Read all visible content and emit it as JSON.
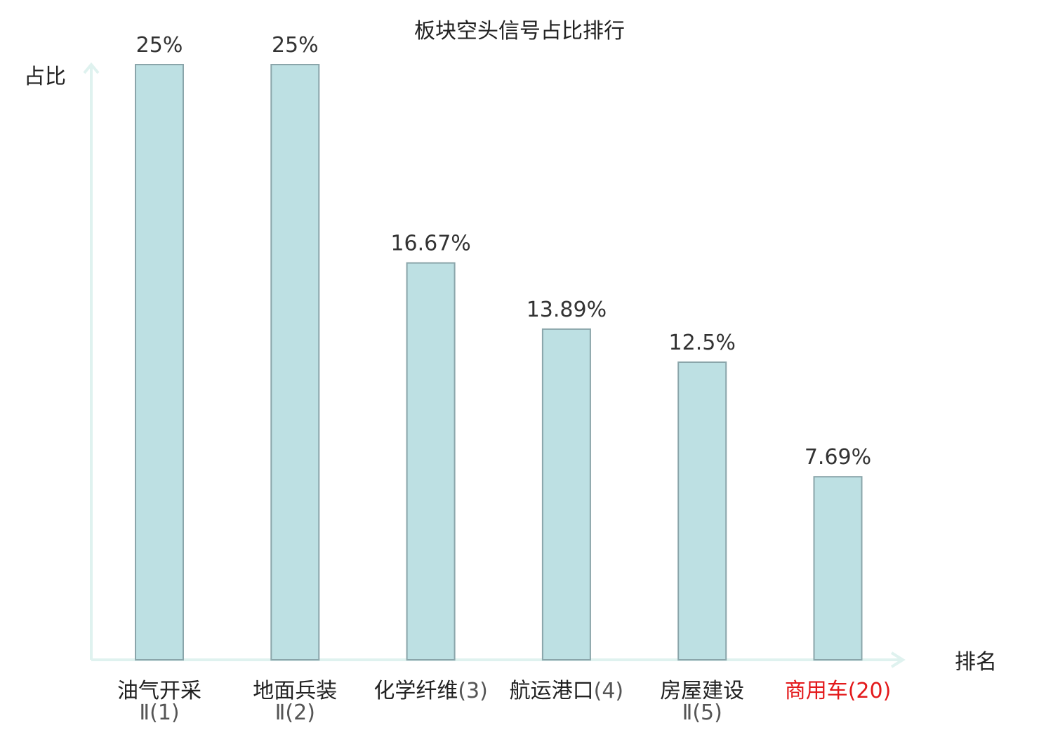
{
  "chart_data": {
    "type": "bar",
    "title": "板块空头信号占比排行",
    "xlabel": "排名",
    "ylabel": "占比",
    "ylim": [
      0,
      25
    ],
    "grid": false,
    "categories": [
      {
        "name": "油气开采",
        "rank_line2": "Ⅱ(1)",
        "highlight": false
      },
      {
        "name": "地面兵装",
        "rank_line2": "Ⅱ(2)",
        "highlight": false
      },
      {
        "name": "化学纤维",
        "rank_suffix": "(3)",
        "highlight": false
      },
      {
        "name": "航运港口",
        "rank_suffix": "(4)",
        "highlight": false
      },
      {
        "name": "房屋建设",
        "rank_line2": "Ⅱ(5)",
        "highlight": false
      },
      {
        "name": "商用车",
        "rank_suffix": "(20)",
        "highlight": true
      }
    ],
    "values": [
      25,
      25,
      16.67,
      13.89,
      12.5,
      7.69
    ],
    "value_labels": [
      "25%",
      "25%",
      "16.67%",
      "13.89%",
      "12.5%",
      "7.69%"
    ]
  },
  "colors": {
    "bar_fill": "#bde0e3",
    "bar_stroke": "#8aa5aa",
    "axis": "#dff2ef",
    "text": "#222222",
    "rank_gray": "#555555",
    "highlight": "#e3191b"
  }
}
